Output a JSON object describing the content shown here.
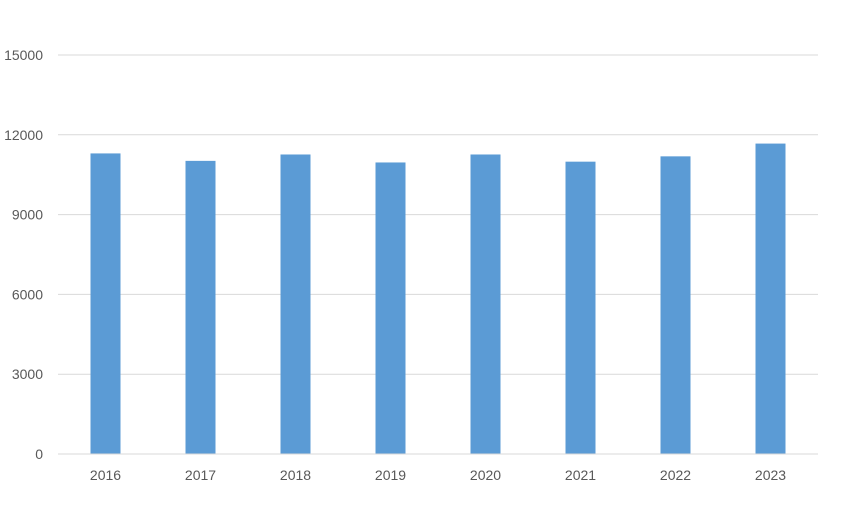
{
  "chart_data": {
    "type": "bar",
    "categories": [
      "2016",
      "2017",
      "2018",
      "2019",
      "2020",
      "2021",
      "2022",
      "2023"
    ],
    "series": [
      {
        "values": [
          11300,
          11020,
          11260,
          10960,
          11260,
          10990,
          11190,
          11670
        ]
      }
    ],
    "y_ticks": [
      "0",
      "3000",
      "6000",
      "9000",
      "12000",
      "15000"
    ],
    "ylim": [
      0,
      15000
    ],
    "grid": true,
    "legend": "none",
    "colors": {
      "bar": "#5b9bd5",
      "grid": "#d9d9d9",
      "text": "#595959"
    }
  }
}
